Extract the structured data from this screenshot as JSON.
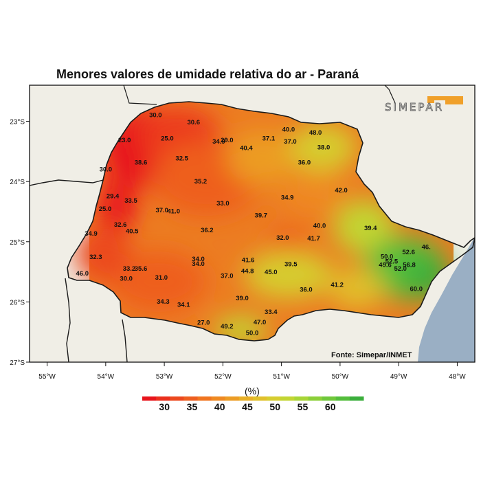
{
  "title": "Menores valores de umidade relativa do ar - Paraná",
  "source": "Fonte: Simepar/INMET",
  "logo_text": "SIMEPAR",
  "unit_label": "(%)",
  "map": {
    "lon_range": [
      -55.3,
      -47.7
    ],
    "lat_range": [
      -27.0,
      -22.4
    ],
    "x_ticks": [
      "55°W",
      "54°W",
      "53°W",
      "52°W",
      "51°W",
      "50°W",
      "49°W",
      "48°W"
    ],
    "x_tick_values": [
      -55,
      -54,
      -53,
      -52,
      -51,
      -50,
      -49,
      -48
    ],
    "y_ticks": [
      "23°S",
      "24°S",
      "25°S",
      "26°S",
      "27°S"
    ],
    "y_tick_values": [
      -23,
      -24,
      -25,
      -26,
      -27
    ],
    "land_color": "#f0eee6",
    "ocean_color": "#9aafc4"
  },
  "stations": [
    {
      "v": "30.0",
      "lon": -53.15,
      "lat": -22.93
    },
    {
      "v": "30.6",
      "lon": -52.5,
      "lat": -23.05
    },
    {
      "v": "23.0",
      "lon": -53.68,
      "lat": -23.35
    },
    {
      "v": "25.0",
      "lon": -52.95,
      "lat": -23.32
    },
    {
      "v": "34.9",
      "lon": -52.07,
      "lat": -23.37
    },
    {
      "v": "29.0",
      "lon": -51.93,
      "lat": -23.35
    },
    {
      "v": "37.1",
      "lon": -51.22,
      "lat": -23.32
    },
    {
      "v": "40.0",
      "lon": -50.88,
      "lat": -23.17
    },
    {
      "v": "48.0",
      "lon": -50.42,
      "lat": -23.22
    },
    {
      "v": "37.0",
      "lon": -50.85,
      "lat": -23.37
    },
    {
      "v": "40.4",
      "lon": -51.6,
      "lat": -23.48
    },
    {
      "v": "38.0",
      "lon": -50.28,
      "lat": -23.47
    },
    {
      "v": "38.6",
      "lon": -53.4,
      "lat": -23.72
    },
    {
      "v": "32.5",
      "lon": -52.7,
      "lat": -23.65
    },
    {
      "v": "36.0",
      "lon": -50.61,
      "lat": -23.72
    },
    {
      "v": "30.0",
      "lon": -54.0,
      "lat": -23.83
    },
    {
      "v": "35.2",
      "lon": -52.38,
      "lat": -24.03
    },
    {
      "v": "29.4",
      "lon": -53.88,
      "lat": -24.28
    },
    {
      "v": "33.5",
      "lon": -53.57,
      "lat": -24.35
    },
    {
      "v": "34.9",
      "lon": -50.9,
      "lat": -24.3
    },
    {
      "v": "42.0",
      "lon": -49.98,
      "lat": -24.18
    },
    {
      "v": "33.0",
      "lon": -52.0,
      "lat": -24.4
    },
    {
      "v": "25.0",
      "lon": -54.01,
      "lat": -24.49
    },
    {
      "v": "37.0",
      "lon": -53.04,
      "lat": -24.51
    },
    {
      "v": "41.0",
      "lon": -52.84,
      "lat": -24.53
    },
    {
      "v": "39.7",
      "lon": -51.35,
      "lat": -24.6
    },
    {
      "v": "32.6",
      "lon": -53.75,
      "lat": -24.75
    },
    {
      "v": "40.0",
      "lon": -50.35,
      "lat": -24.77
    },
    {
      "v": "40.5",
      "lon": -53.55,
      "lat": -24.86
    },
    {
      "v": "36.2",
      "lon": -52.27,
      "lat": -24.84
    },
    {
      "v": "39.4",
      "lon": -49.48,
      "lat": -24.81
    },
    {
      "v": "34.9",
      "lon": -54.25,
      "lat": -24.9
    },
    {
      "v": "32.0",
      "lon": -50.98,
      "lat": -24.97
    },
    {
      "v": "41.7",
      "lon": -50.45,
      "lat": -24.98
    },
    {
      "v": "52.6",
      "lon": -48.83,
      "lat": -25.21
    },
    {
      "v": "46.",
      "lon": -48.53,
      "lat": -25.12
    },
    {
      "v": "32.3",
      "lon": -54.17,
      "lat": -25.29
    },
    {
      "v": "34.0",
      "lon": -52.42,
      "lat": -25.32
    },
    {
      "v": "41.6",
      "lon": -51.57,
      "lat": -25.34
    },
    {
      "v": "50.0",
      "lon": -49.2,
      "lat": -25.28
    },
    {
      "v": "52.5",
      "lon": -49.12,
      "lat": -25.36
    },
    {
      "v": "34.0",
      "lon": -52.42,
      "lat": -25.4
    },
    {
      "v": "49.6",
      "lon": -49.23,
      "lat": -25.42
    },
    {
      "v": "56.8",
      "lon": -48.82,
      "lat": -25.42
    },
    {
      "v": "39.5",
      "lon": -50.84,
      "lat": -25.41
    },
    {
      "v": "52.0",
      "lon": -48.97,
      "lat": -25.48
    },
    {
      "v": "33.2",
      "lon": -53.6,
      "lat": -25.48
    },
    {
      "v": "35.6",
      "lon": -53.4,
      "lat": -25.48
    },
    {
      "v": "44.8",
      "lon": -51.58,
      "lat": -25.52
    },
    {
      "v": "45.0",
      "lon": -51.18,
      "lat": -25.54
    },
    {
      "v": "46.0",
      "lon": -54.4,
      "lat": -25.56
    },
    {
      "v": "37.0",
      "lon": -51.93,
      "lat": -25.6
    },
    {
      "v": "30.0",
      "lon": -53.65,
      "lat": -25.65
    },
    {
      "v": "31.0",
      "lon": -53.05,
      "lat": -25.63
    },
    {
      "v": "41.2",
      "lon": -50.05,
      "lat": -25.75
    },
    {
      "v": "36.0",
      "lon": -50.58,
      "lat": -25.83
    },
    {
      "v": "60.0",
      "lon": -48.7,
      "lat": -25.82
    },
    {
      "v": "39.0",
      "lon": -51.67,
      "lat": -25.97
    },
    {
      "v": "34.3",
      "lon": -53.02,
      "lat": -26.03
    },
    {
      "v": "34.1",
      "lon": -52.67,
      "lat": -26.08
    },
    {
      "v": "33.4",
      "lon": -51.18,
      "lat": -26.2
    },
    {
      "v": "27.0",
      "lon": -52.33,
      "lat": -26.38
    },
    {
      "v": "47.0",
      "lon": -51.37,
      "lat": -26.37
    },
    {
      "v": "49.2",
      "lon": -51.93,
      "lat": -26.44
    },
    {
      "v": "50.0",
      "lon": -51.5,
      "lat": -26.55
    }
  ],
  "legend": {
    "labels": [
      "30",
      "35",
      "40",
      "45",
      "50",
      "55",
      "60"
    ],
    "label_values": [
      30,
      35,
      40,
      45,
      50,
      55,
      60
    ],
    "colors": [
      "#e8141b",
      "#ea2f1c",
      "#ec481d",
      "#ee5e1f",
      "#f0741f",
      "#ef8921",
      "#ec9c24",
      "#e8b027",
      "#e1c02b",
      "#d6cd2f",
      "#c2d532",
      "#a7d536",
      "#8bcf38",
      "#6fc73a",
      "#53bd3b",
      "#3aae3b"
    ]
  }
}
